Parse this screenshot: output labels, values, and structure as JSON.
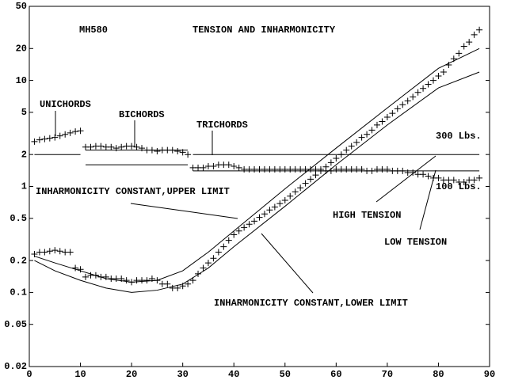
{
  "chart_data": {
    "type": "line",
    "title": "TENSION AND INHARMONICITY",
    "subtitle": "MH580",
    "annotations": [
      "UNICHORDS",
      "BICHORDS",
      "TRICHORDS",
      "300 Lbs.",
      "100 Lbs.",
      "INHARMONICITY CONSTANT,UPPER LIMIT",
      "INHARMONICITY CONSTANT,LOWER LIMIT",
      "HIGH TENSION",
      "LOW TENSION"
    ],
    "color": "#000000",
    "log_y": true,
    "xlim": [
      0,
      90
    ],
    "xticks": [
      0,
      10,
      20,
      30,
      40,
      50,
      60,
      70,
      80,
      90
    ],
    "ylim": [
      0.02,
      50
    ],
    "yticks": [
      0.02,
      0.05,
      0.1,
      0.2,
      0.5,
      1,
      2,
      5,
      10,
      20,
      50
    ],
    "x": [
      1,
      2,
      3,
      4,
      5,
      6,
      7,
      8,
      9,
      10,
      11,
      12,
      13,
      14,
      15,
      16,
      17,
      18,
      19,
      20,
      21,
      22,
      23,
      24,
      25,
      26,
      27,
      28,
      29,
      30,
      31,
      32,
      33,
      34,
      35,
      36,
      37,
      38,
      39,
      40,
      41,
      42,
      43,
      44,
      45,
      46,
      47,
      48,
      49,
      50,
      51,
      52,
      53,
      54,
      55,
      56,
      57,
      58,
      59,
      60,
      61,
      62,
      63,
      64,
      65,
      66,
      67,
      68,
      69,
      70,
      71,
      72,
      73,
      74,
      75,
      76,
      77,
      78,
      79,
      80,
      81,
      82,
      83,
      84,
      85,
      86,
      87,
      88
    ],
    "series": [
      {
        "marker": "+",
        "values": [
          2.65,
          2.75,
          2.8,
          2.85,
          2.9,
          3.0,
          3.1,
          3.2,
          3.3,
          3.35,
          2.35,
          2.35,
          2.4,
          2.4,
          2.35,
          2.35,
          2.3,
          2.35,
          2.4,
          2.4,
          2.35,
          2.3,
          2.2,
          2.2,
          2.15,
          2.2,
          2.2,
          2.2,
          2.15,
          2.1,
          2.0,
          1.5,
          1.5,
          1.5,
          1.55,
          1.55,
          1.6,
          1.6,
          1.6,
          1.55,
          1.5,
          1.45,
          1.45,
          1.45,
          1.45,
          1.45,
          1.45,
          1.45,
          1.45,
          1.45,
          1.45,
          1.45,
          1.45,
          1.45,
          1.45,
          1.45,
          1.45,
          1.4,
          1.4,
          1.45,
          1.45,
          1.45,
          1.45,
          1.45,
          1.45,
          1.4,
          1.4,
          1.45,
          1.45,
          1.45,
          1.4,
          1.4,
          1.4,
          1.35,
          1.35,
          1.3,
          1.3,
          1.25,
          1.2,
          1.2,
          1.15,
          1.15,
          1.15,
          1.1,
          1.1,
          1.15,
          1.15,
          1.2
        ]
      },
      {
        "marker": "+",
        "values": [
          0.23,
          0.24,
          0.24,
          0.245,
          0.25,
          0.245,
          0.24,
          0.24,
          0.17,
          0.165,
          0.14,
          0.145,
          0.145,
          0.14,
          0.14,
          0.135,
          0.135,
          0.135,
          0.13,
          0.125,
          0.13,
          0.13,
          0.13,
          0.135,
          0.13,
          0.12,
          0.12,
          0.11,
          0.11,
          0.115,
          0.12,
          0.13,
          0.15,
          0.17,
          0.19,
          0.21,
          0.24,
          0.27,
          0.31,
          0.35,
          0.38,
          0.41,
          0.44,
          0.47,
          0.51,
          0.55,
          0.6,
          0.64,
          0.69,
          0.74,
          0.81,
          0.89,
          0.97,
          1.07,
          1.17,
          1.28,
          1.4,
          1.53,
          1.68,
          1.84,
          2.0,
          2.2,
          2.4,
          2.6,
          2.9,
          3.1,
          3.4,
          3.8,
          4.1,
          4.5,
          4.9,
          5.4,
          5.9,
          6.4,
          7.0,
          7.7,
          8.4,
          9.2,
          10,
          11,
          12,
          14,
          16,
          18,
          21,
          23,
          27,
          30
        ]
      },
      {
        "x": [
          1,
          5,
          10,
          15,
          20,
          25,
          30,
          35,
          40,
          50,
          60,
          70,
          80,
          88
        ],
        "values": [
          0.22,
          0.19,
          0.16,
          0.135,
          0.125,
          0.13,
          0.16,
          0.24,
          0.38,
          0.95,
          2.3,
          5.5,
          13,
          20
        ]
      },
      {
        "x": [
          1,
          5,
          10,
          15,
          20,
          25,
          30,
          35,
          40,
          50,
          60,
          70,
          80,
          88
        ],
        "values": [
          0.2,
          0.16,
          0.13,
          0.11,
          0.1,
          0.105,
          0.12,
          0.17,
          0.27,
          0.65,
          1.6,
          3.8,
          8.5,
          12
        ]
      },
      {
        "x": [
          1,
          10
        ],
        "values": [
          2,
          2
        ]
      },
      {
        "x": [
          11,
          31
        ],
        "values": [
          2.2,
          2.2
        ]
      },
      {
        "x": [
          11,
          31
        ],
        "values": [
          1.6,
          1.6
        ]
      },
      {
        "x": [
          32,
          88
        ],
        "values": [
          2,
          2
        ]
      },
      {
        "x": [
          32,
          88
        ],
        "values": [
          1.4,
          1.4
        ]
      }
    ]
  }
}
